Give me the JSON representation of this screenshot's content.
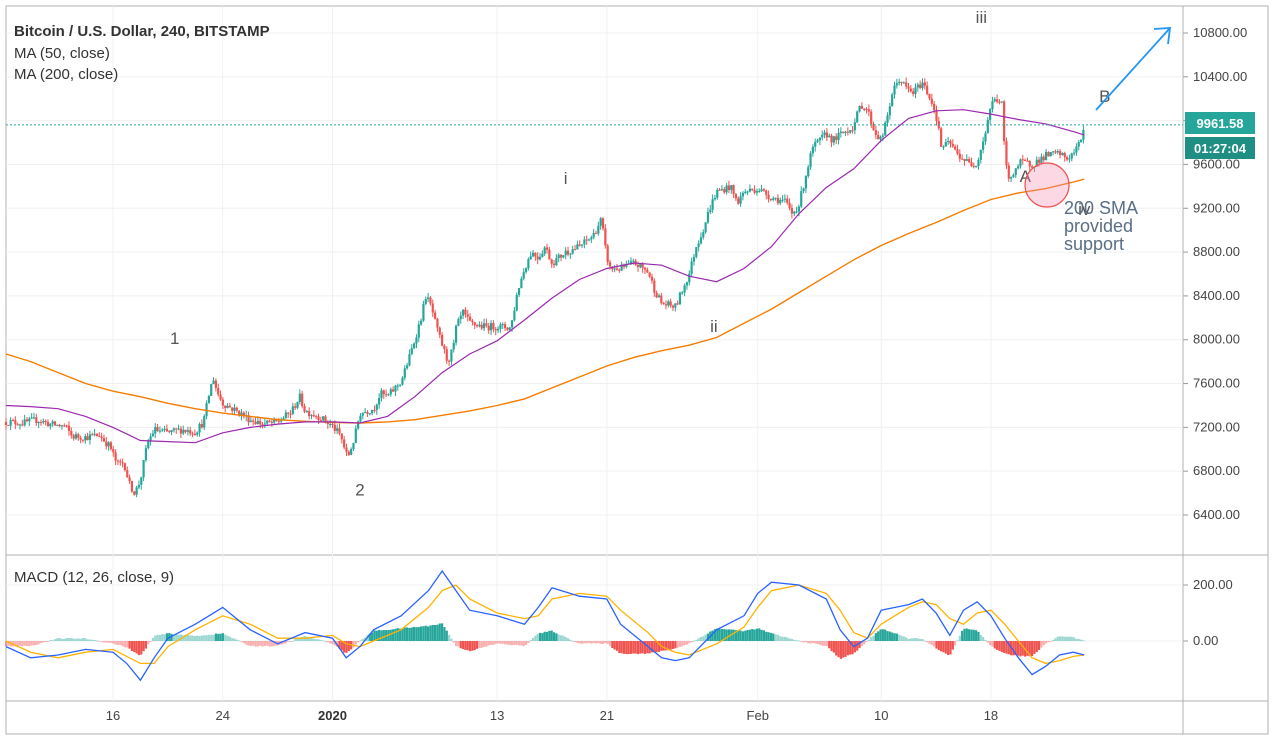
{
  "header": {
    "title": "Bitcoin / U.S. Dollar, 240, BITSTAMP",
    "ma50_label": "MA (50, close)",
    "ma200_label": "MA (200, close)",
    "macd_label": "MACD (12, 26, close, 9)"
  },
  "price_badge": {
    "price": "9961.58",
    "countdown": "01:27:04"
  },
  "annotation": {
    "line1": "200 SMA",
    "line2": "provided",
    "line3": "support"
  },
  "colors": {
    "up": "#26a69a",
    "down": "#ef5350",
    "ma50": "#9c27b0",
    "ma200": "#f57c00",
    "macd_line": "#2962ff",
    "signal_line": "#ffb300",
    "arrow": "#2196f3",
    "badge_price": "#26a69a",
    "badge_countdown": "#1f8f84",
    "circle": "#f48fb1"
  },
  "chart_data": [
    {
      "type": "candlestick",
      "title": "Bitcoin / U.S. Dollar, 240, BITSTAMP",
      "y_ticks": [
        "10800.00",
        "10400.00",
        "10000.00",
        "9600.00",
        "9200.00",
        "8800.00",
        "8400.00",
        "8000.00",
        "7600.00",
        "7200.00",
        "6800.00",
        "6400.00"
      ],
      "x_ticks": [
        {
          "label": "16",
          "pos": 16,
          "bold": false
        },
        {
          "label": "24",
          "pos": 24,
          "bold": false
        },
        {
          "label": "2020",
          "pos": 32,
          "bold": true
        },
        {
          "label": "13",
          "pos": 44,
          "bold": false
        },
        {
          "label": "21",
          "pos": 52,
          "bold": false
        },
        {
          "label": "Feb",
          "pos": 63,
          "bold": false
        },
        {
          "label": "10",
          "pos": 72,
          "bold": false
        },
        {
          "label": "18",
          "pos": 80,
          "bold": false
        }
      ],
      "ylim": [
        6100,
        10990
      ],
      "x_range": [
        8.2,
        94
      ],
      "last_price": 9961.58,
      "close_path": [
        [
          8.2,
          7250
        ],
        [
          9.5,
          7240
        ],
        [
          10.5,
          7270
        ],
        [
          11.5,
          7225
        ],
        [
          12.5,
          7210
        ],
        [
          13,
          7120
        ],
        [
          14,
          7110
        ],
        [
          15,
          7130
        ],
        [
          15.8,
          7020
        ],
        [
          16.3,
          6860
        ],
        [
          16.8,
          6880
        ],
        [
          17.2,
          6680
        ],
        [
          17.6,
          6600
        ],
        [
          18.0,
          6720
        ],
        [
          18.5,
          7050
        ],
        [
          19,
          7180
        ],
        [
          20,
          7150
        ],
        [
          21,
          7180
        ],
        [
          22,
          7160
        ],
        [
          22.6,
          7250
        ],
        [
          23,
          7500
        ],
        [
          23.3,
          7660
        ],
        [
          23.6,
          7520
        ],
        [
          24,
          7420
        ],
        [
          25,
          7350
        ],
        [
          26,
          7270
        ],
        [
          27,
          7230
        ],
        [
          28,
          7250
        ],
        [
          29,
          7340
        ],
        [
          29.6,
          7480
        ],
        [
          30,
          7350
        ],
        [
          31,
          7300
        ],
        [
          32,
          7210
        ],
        [
          32.6,
          7120
        ],
        [
          33.1,
          6920
        ],
        [
          33.6,
          7100
        ],
        [
          34,
          7330
        ],
        [
          35,
          7370
        ],
        [
          35.5,
          7510
        ],
        [
          36,
          7480
        ],
        [
          37,
          7620
        ],
        [
          37.5,
          7800
        ],
        [
          38,
          8000
        ],
        [
          38.5,
          8220
        ],
        [
          38.8,
          8400
        ],
        [
          39.2,
          8300
        ],
        [
          39.6,
          8100
        ],
        [
          40,
          7950
        ],
        [
          40.4,
          7800
        ],
        [
          40.8,
          7920
        ],
        [
          41,
          8100
        ],
        [
          41.5,
          8250
        ],
        [
          42,
          8150
        ],
        [
          43,
          8120
        ],
        [
          44,
          8120
        ],
        [
          45,
          8110
        ],
        [
          45.5,
          8450
        ],
        [
          46,
          8650
        ],
        [
          46.5,
          8800
        ],
        [
          47,
          8750
        ],
        [
          47.5,
          8850
        ],
        [
          48,
          8700
        ],
        [
          49,
          8800
        ],
        [
          50,
          8850
        ],
        [
          51,
          8950
        ],
        [
          51.6,
          9100
        ],
        [
          51.9,
          8820
        ],
        [
          52.2,
          8650
        ],
        [
          53,
          8650
        ],
        [
          54,
          8700
        ],
        [
          55,
          8620
        ],
        [
          55.5,
          8450
        ],
        [
          56,
          8330
        ],
        [
          57,
          8300
        ],
        [
          57.5,
          8450
        ],
        [
          58,
          8600
        ],
        [
          58.5,
          8850
        ],
        [
          59,
          9000
        ],
        [
          59.5,
          9200
        ],
        [
          60,
          9350
        ],
        [
          61,
          9400
        ],
        [
          61.5,
          9250
        ],
        [
          62,
          9350
        ],
        [
          63,
          9380
        ],
        [
          64,
          9300
        ],
        [
          65,
          9260
        ],
        [
          65.5,
          9150
        ],
        [
          66,
          9230
        ],
        [
          66.5,
          9500
        ],
        [
          67,
          9750
        ],
        [
          68,
          9880
        ],
        [
          68.5,
          9820
        ],
        [
          69,
          9870
        ],
        [
          70,
          9950
        ],
        [
          70.5,
          10150
        ],
        [
          71,
          10100
        ],
        [
          71.5,
          9900
        ],
        [
          72,
          9820
        ],
        [
          72.4,
          10000
        ],
        [
          72.8,
          10250
        ],
        [
          73.3,
          10380
        ],
        [
          73.8,
          10300
        ],
        [
          74.3,
          10250
        ],
        [
          75,
          10350
        ],
        [
          75.6,
          10200
        ],
        [
          76,
          10050
        ],
        [
          76.4,
          9750
        ],
        [
          77,
          9800
        ],
        [
          77.5,
          9700
        ],
        [
          78,
          9650
        ],
        [
          78.5,
          9600
        ],
        [
          79,
          9620
        ],
        [
          79.6,
          9900
        ],
        [
          80,
          10150
        ],
        [
          80.4,
          10200
        ],
        [
          80.8,
          10150
        ],
        [
          81.0,
          9700
        ],
        [
          81.3,
          9450
        ],
        [
          81.7,
          9550
        ],
        [
          82.2,
          9620
        ],
        [
          83,
          9600
        ],
        [
          84,
          9680
        ],
        [
          85,
          9700
        ],
        [
          85.5,
          9650
        ],
        [
          86,
          9700
        ],
        [
          86.5,
          9800
        ],
        [
          86.8,
          9961.58
        ]
      ],
      "ma50_path": [
        [
          8.2,
          7400
        ],
        [
          10,
          7390
        ],
        [
          12,
          7370
        ],
        [
          14,
          7300
        ],
        [
          16,
          7200
        ],
        [
          18,
          7080
        ],
        [
          20,
          7070
        ],
        [
          22,
          7060
        ],
        [
          24,
          7150
        ],
        [
          26,
          7200
        ],
        [
          28,
          7230
        ],
        [
          30,
          7250
        ],
        [
          32,
          7250
        ],
        [
          34,
          7240
        ],
        [
          36,
          7300
        ],
        [
          38,
          7480
        ],
        [
          40,
          7700
        ],
        [
          42,
          7870
        ],
        [
          44,
          7990
        ],
        [
          46,
          8180
        ],
        [
          48,
          8380
        ],
        [
          50,
          8550
        ],
        [
          52,
          8650
        ],
        [
          54,
          8700
        ],
        [
          56,
          8680
        ],
        [
          58,
          8580
        ],
        [
          60,
          8530
        ],
        [
          62,
          8650
        ],
        [
          64,
          8850
        ],
        [
          66,
          9150
        ],
        [
          68,
          9390
        ],
        [
          70,
          9560
        ],
        [
          72,
          9820
        ],
        [
          74,
          10020
        ],
        [
          76,
          10090
        ],
        [
          78,
          10100
        ],
        [
          80,
          10060
        ],
        [
          82,
          10010
        ],
        [
          84,
          9970
        ],
        [
          86,
          9900
        ],
        [
          86.8,
          9870
        ]
      ],
      "ma200_path": [
        [
          8.2,
          7870
        ],
        [
          10,
          7800
        ],
        [
          12,
          7700
        ],
        [
          14,
          7600
        ],
        [
          16,
          7530
        ],
        [
          18,
          7480
        ],
        [
          20,
          7420
        ],
        [
          22,
          7370
        ],
        [
          24,
          7330
        ],
        [
          26,
          7300
        ],
        [
          28,
          7270
        ],
        [
          30,
          7255
        ],
        [
          32,
          7245
        ],
        [
          34,
          7240
        ],
        [
          36,
          7250
        ],
        [
          38,
          7270
        ],
        [
          40,
          7310
        ],
        [
          42,
          7350
        ],
        [
          44,
          7400
        ],
        [
          46,
          7460
        ],
        [
          48,
          7560
        ],
        [
          50,
          7660
        ],
        [
          52,
          7760
        ],
        [
          54,
          7840
        ],
        [
          56,
          7900
        ],
        [
          58,
          7950
        ],
        [
          60,
          8020
        ],
        [
          62,
          8150
        ],
        [
          64,
          8280
        ],
        [
          66,
          8430
        ],
        [
          68,
          8580
        ],
        [
          70,
          8730
        ],
        [
          72,
          8860
        ],
        [
          74,
          8970
        ],
        [
          76,
          9070
        ],
        [
          78,
          9180
        ],
        [
          80,
          9280
        ],
        [
          82,
          9340
        ],
        [
          84,
          9380
        ],
        [
          86,
          9440
        ],
        [
          86.8,
          9465
        ]
      ],
      "wave_labels": [
        {
          "text": "1",
          "x": 20.5,
          "y": 7960
        },
        {
          "text": "2",
          "x": 34.0,
          "y": 6580
        },
        {
          "text": "i",
          "x": 49.0,
          "y": 9420
        },
        {
          "text": "ii",
          "x": 59.8,
          "y": 8070
        },
        {
          "text": "iii",
          "x": 79.3,
          "y": 10890
        },
        {
          "text": "A",
          "x": 82.5,
          "y": 9440
        },
        {
          "text": "B",
          "x": 88.3,
          "y": 10170
        },
        {
          "text": "iv",
          "x": 86.8,
          "y": 9140
        }
      ]
    },
    {
      "type": "macd",
      "title": "MACD (12, 26, close, 9)",
      "y_ticks": [
        "200.00",
        "0.00"
      ],
      "ylim": [
        -185,
        265
      ],
      "macd_path": [
        [
          8.2,
          -20
        ],
        [
          10,
          -60
        ],
        [
          12,
          -50
        ],
        [
          14,
          -30
        ],
        [
          16,
          -40
        ],
        [
          17,
          -80
        ],
        [
          18,
          -140
        ],
        [
          19,
          -60
        ],
        [
          20,
          10
        ],
        [
          22,
          60
        ],
        [
          24,
          120
        ],
        [
          26,
          40
        ],
        [
          28,
          -10
        ],
        [
          30,
          30
        ],
        [
          32,
          10
        ],
        [
          33,
          -60
        ],
        [
          34,
          -20
        ],
        [
          35,
          40
        ],
        [
          37,
          90
        ],
        [
          39,
          180
        ],
        [
          40,
          250
        ],
        [
          41,
          180
        ],
        [
          42,
          110
        ],
        [
          44,
          90
        ],
        [
          46,
          60
        ],
        [
          47,
          120
        ],
        [
          48,
          190
        ],
        [
          50,
          160
        ],
        [
          52,
          150
        ],
        [
          53,
          60
        ],
        [
          55,
          -20
        ],
        [
          56,
          -60
        ],
        [
          57,
          -70
        ],
        [
          58,
          -60
        ],
        [
          60,
          40
        ],
        [
          62,
          90
        ],
        [
          63,
          170
        ],
        [
          64,
          210
        ],
        [
          66,
          200
        ],
        [
          68,
          150
        ],
        [
          69,
          40
        ],
        [
          70,
          -20
        ],
        [
          71,
          10
        ],
        [
          72,
          110
        ],
        [
          74,
          130
        ],
        [
          75,
          150
        ],
        [
          76,
          100
        ],
        [
          77,
          20
        ],
        [
          78,
          110
        ],
        [
          79,
          140
        ],
        [
          80,
          90
        ],
        [
          81,
          10
        ],
        [
          82,
          -60
        ],
        [
          83,
          -120
        ],
        [
          84,
          -90
        ],
        [
          85,
          -50
        ],
        [
          86,
          -40
        ],
        [
          86.8,
          -50
        ]
      ],
      "signal_path": [
        [
          8.2,
          0
        ],
        [
          10,
          -40
        ],
        [
          12,
          -60
        ],
        [
          14,
          -40
        ],
        [
          16,
          -30
        ],
        [
          18,
          -80
        ],
        [
          19,
          -80
        ],
        [
          20,
          -20
        ],
        [
          22,
          40
        ],
        [
          24,
          90
        ],
        [
          26,
          60
        ],
        [
          28,
          10
        ],
        [
          30,
          10
        ],
        [
          32,
          20
        ],
        [
          33,
          -10
        ],
        [
          34,
          -20
        ],
        [
          35,
          0
        ],
        [
          37,
          40
        ],
        [
          39,
          120
        ],
        [
          40,
          180
        ],
        [
          41,
          200
        ],
        [
          42,
          150
        ],
        [
          44,
          100
        ],
        [
          46,
          80
        ],
        [
          47,
          90
        ],
        [
          48,
          150
        ],
        [
          50,
          170
        ],
        [
          52,
          160
        ],
        [
          53,
          110
        ],
        [
          55,
          30
        ],
        [
          56,
          -20
        ],
        [
          57,
          -40
        ],
        [
          58,
          -50
        ],
        [
          60,
          -10
        ],
        [
          62,
          50
        ],
        [
          63,
          120
        ],
        [
          64,
          180
        ],
        [
          66,
          200
        ],
        [
          68,
          170
        ],
        [
          69,
          110
        ],
        [
          70,
          30
        ],
        [
          71,
          10
        ],
        [
          72,
          60
        ],
        [
          74,
          120
        ],
        [
          75,
          140
        ],
        [
          76,
          130
        ],
        [
          77,
          80
        ],
        [
          78,
          60
        ],
        [
          79,
          100
        ],
        [
          80,
          110
        ],
        [
          81,
          60
        ],
        [
          82,
          0
        ],
        [
          83,
          -60
        ],
        [
          84,
          -80
        ],
        [
          85,
          -70
        ],
        [
          86,
          -55
        ],
        [
          86.8,
          -50
        ]
      ]
    }
  ]
}
